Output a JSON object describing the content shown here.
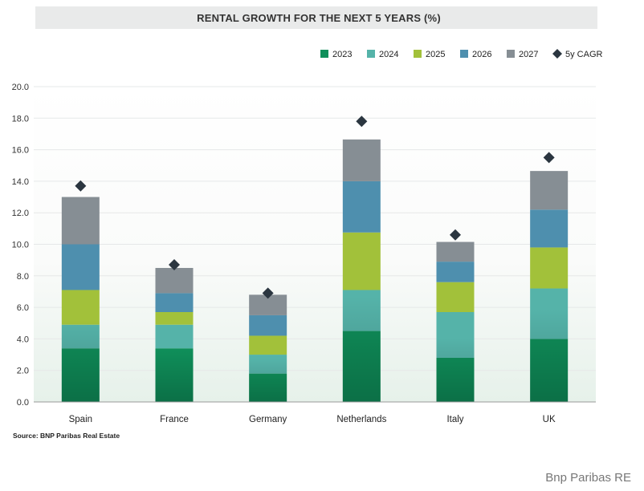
{
  "chart_data": {
    "type": "bar",
    "stacked": true,
    "title": "RENTAL GROWTH FOR THE NEXT 5 YEARS (%)",
    "categories": [
      "Spain",
      "France",
      "Germany",
      "Netherlands",
      "Italy",
      "UK"
    ],
    "series": [
      {
        "name": "2023",
        "color": "#0f8f5a",
        "values": [
          3.4,
          3.4,
          1.8,
          4.5,
          2.8,
          4.0
        ]
      },
      {
        "name": "2024",
        "color": "#55b3a9",
        "values": [
          1.5,
          1.5,
          1.2,
          2.6,
          2.9,
          3.2
        ]
      },
      {
        "name": "2025",
        "color": "#a2c13a",
        "values": [
          2.2,
          0.8,
          1.2,
          3.65,
          1.9,
          2.6
        ]
      },
      {
        "name": "2026",
        "color": "#4e8fae",
        "values": [
          2.9,
          1.2,
          1.3,
          3.25,
          1.3,
          2.4
        ]
      },
      {
        "name": "2027",
        "color": "#868e94",
        "values": [
          3.0,
          1.6,
          1.3,
          2.65,
          1.25,
          2.45
        ]
      }
    ],
    "markers": {
      "name": "5y CAGR",
      "color": "#2b3640",
      "values": [
        13.7,
        8.7,
        6.9,
        17.8,
        10.6,
        15.5
      ]
    },
    "ylim": [
      0,
      20
    ],
    "yticks": [
      "0.0",
      "2.0",
      "4.0",
      "6.0",
      "8.0",
      "10.0",
      "12.0",
      "14.0",
      "16.0",
      "18.0",
      "20.0"
    ],
    "xlabel": "",
    "ylabel": "",
    "grid": true,
    "legend_position": "top-right",
    "source": "Source: BNP Paribas Real Estate"
  },
  "watermark": "Bnp Paribas RE"
}
